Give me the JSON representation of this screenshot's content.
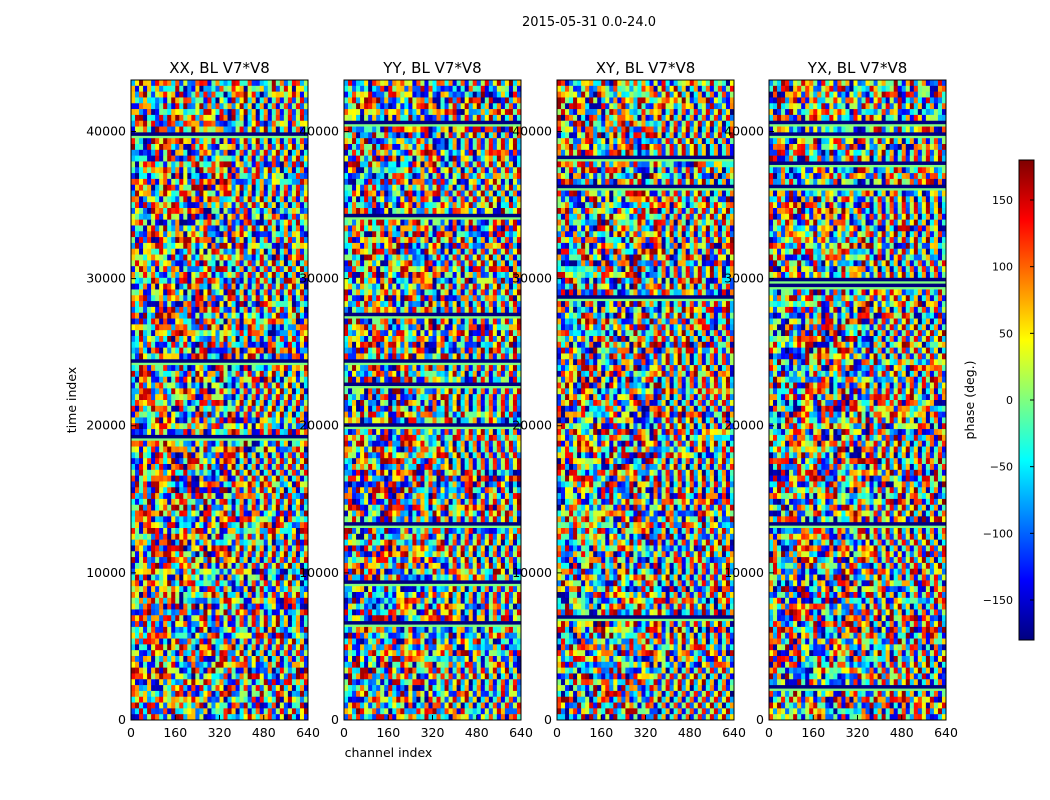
{
  "suptitle": "2015-05-31 0.0-24.0",
  "colors": {
    "jet": [
      "#00007f",
      "#0000ff",
      "#007fff",
      "#00ffff",
      "#7fff7f",
      "#ffff00",
      "#ff7f00",
      "#ff0000",
      "#7f0000"
    ],
    "frame": "#000000",
    "background": "#ffffff"
  },
  "chart_data": [
    {
      "type": "heatmap",
      "title": "XX, BL V7*V8",
      "xlabel": "",
      "ylabel": "time index",
      "x_ticks": [
        0,
        160,
        320,
        480,
        640
      ],
      "y_ticks": [
        0,
        10000,
        20000,
        30000,
        40000
      ],
      "xlim": [
        0,
        640
      ],
      "ylim": [
        0,
        43500
      ],
      "value_range": [
        -180,
        180
      ]
    },
    {
      "type": "heatmap",
      "title": "YY, BL V7*V8",
      "xlabel": "channel index",
      "ylabel": "",
      "x_ticks": [
        0,
        160,
        320,
        480,
        640
      ],
      "y_ticks": [
        0,
        10000,
        20000,
        30000,
        40000
      ],
      "xlim": [
        0,
        640
      ],
      "ylim": [
        0,
        43500
      ],
      "value_range": [
        -180,
        180
      ]
    },
    {
      "type": "heatmap",
      "title": "XY, BL V7*V8",
      "xlabel": "",
      "ylabel": "",
      "x_ticks": [
        0,
        160,
        320,
        480,
        640
      ],
      "y_ticks": [
        0,
        10000,
        20000,
        30000,
        40000
      ],
      "xlim": [
        0,
        640
      ],
      "ylim": [
        0,
        43500
      ],
      "value_range": [
        -180,
        180
      ]
    },
    {
      "type": "heatmap",
      "title": "YX, BL V7*V8",
      "xlabel": "",
      "ylabel": "",
      "x_ticks": [
        0,
        160,
        320,
        480,
        640
      ],
      "y_ticks": [
        0,
        10000,
        20000,
        30000,
        40000
      ],
      "xlim": [
        0,
        640
      ],
      "ylim": [
        0,
        43500
      ],
      "value_range": [
        -180,
        180
      ]
    }
  ],
  "colorbar": {
    "label": "phase (deg.)",
    "ticks": [
      -150,
      -100,
      -50,
      0,
      50,
      100,
      150
    ],
    "range": [
      -180,
      180
    ]
  }
}
